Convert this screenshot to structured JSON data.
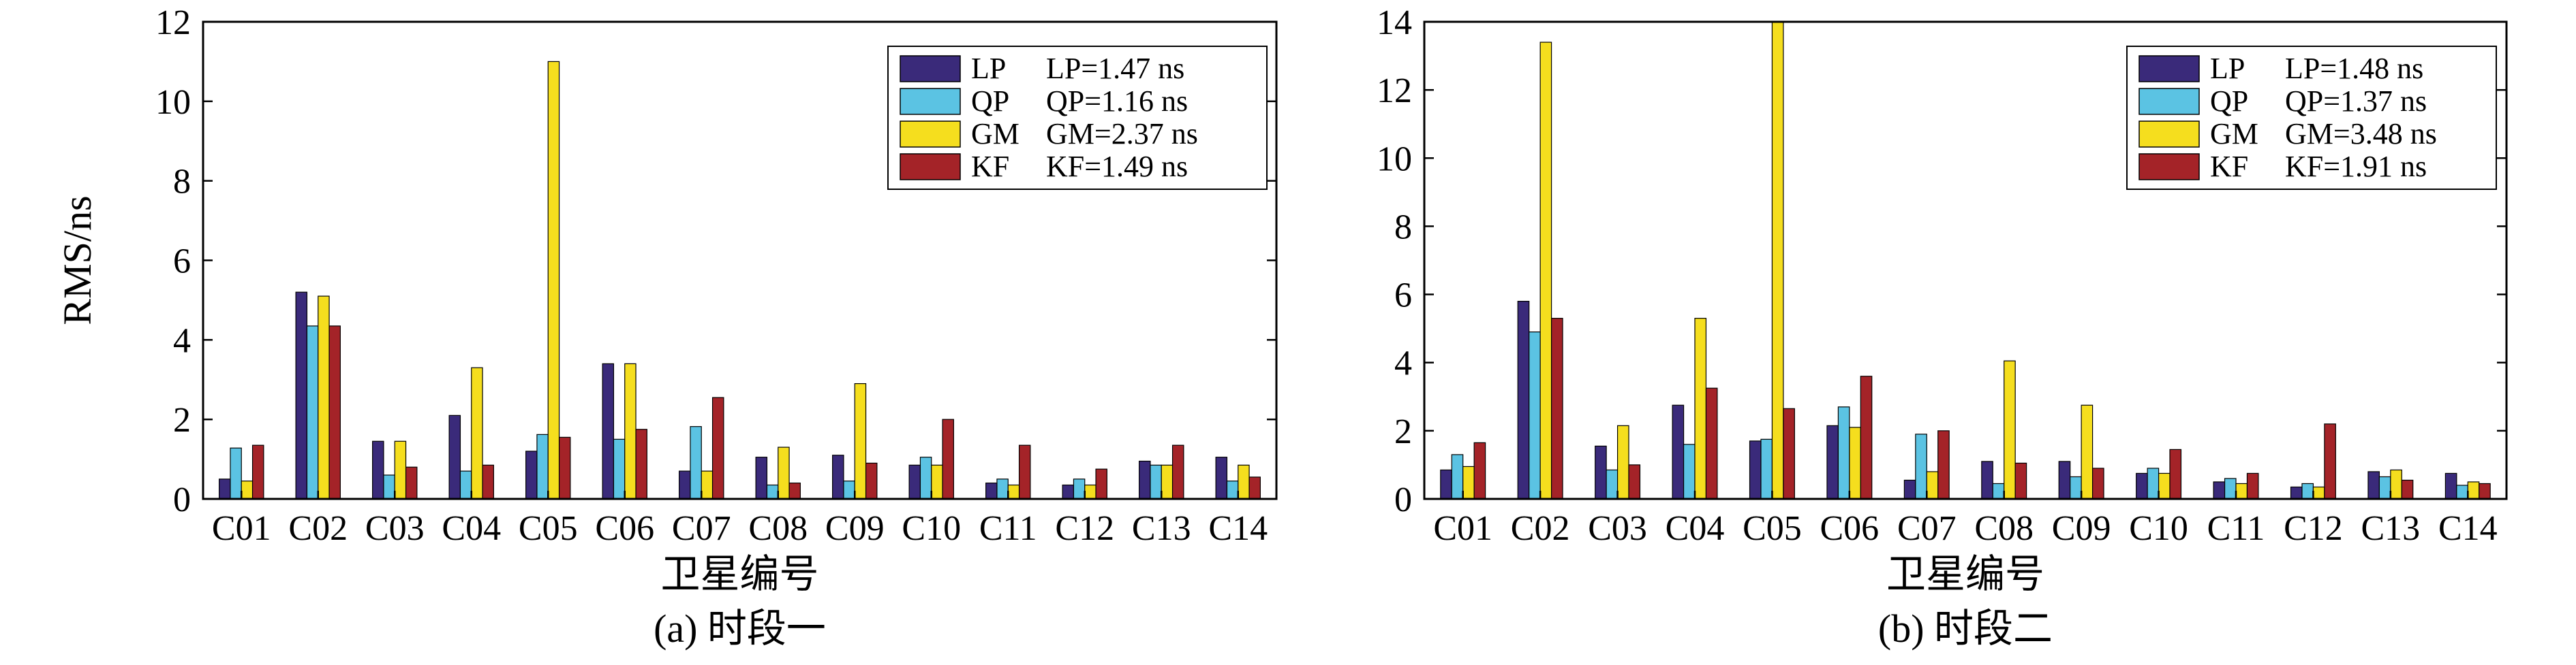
{
  "colors": {
    "LP": "#3a2a7a",
    "QP": "#5bc3e3",
    "GM": "#f5de1e",
    "KF": "#a42328",
    "axis": "#000000",
    "background": "#ffffff"
  },
  "chart_data": [
    {
      "type": "bar",
      "caption": "(a) 时段一",
      "xlabel": "卫星编号",
      "ylabel": "RMS/ns",
      "ylim": [
        0,
        12
      ],
      "yticks": [
        0,
        2,
        4,
        6,
        8,
        10,
        12
      ],
      "categories": [
        "C01",
        "C02",
        "C03",
        "C04",
        "C05",
        "C06",
        "C07",
        "C08",
        "C09",
        "C10",
        "C11",
        "C12",
        "C13",
        "C14"
      ],
      "series": [
        {
          "name": "LP",
          "values": [
            0.5,
            5.2,
            1.45,
            2.1,
            1.2,
            3.4,
            0.7,
            1.05,
            1.1,
            0.85,
            0.4,
            0.35,
            0.95,
            1.05
          ]
        },
        {
          "name": "QP",
          "values": [
            1.28,
            4.35,
            0.6,
            0.7,
            1.62,
            1.5,
            1.82,
            0.35,
            0.45,
            1.05,
            0.5,
            0.5,
            0.85,
            0.45
          ]
        },
        {
          "name": "GM",
          "values": [
            0.45,
            5.1,
            1.45,
            3.3,
            11.0,
            3.4,
            0.7,
            1.3,
            2.9,
            0.85,
            0.35,
            0.35,
            0.85,
            0.85
          ]
        },
        {
          "name": "KF",
          "values": [
            1.35,
            4.35,
            0.8,
            0.85,
            1.55,
            1.75,
            2.55,
            0.4,
            0.9,
            2.0,
            1.35,
            0.75,
            1.35,
            0.55
          ]
        }
      ],
      "legend": {
        "placement": "top-right",
        "entries": [
          {
            "label": "LP",
            "stat": "LP=1.47 ns"
          },
          {
            "label": "QP",
            "stat": "QP=1.16 ns"
          },
          {
            "label": "GM",
            "stat": "GM=2.37 ns"
          },
          {
            "label": "KF",
            "stat": "KF=1.49 ns"
          }
        ]
      }
    },
    {
      "type": "bar",
      "caption": "(b) 时段二",
      "xlabel": "卫星编号",
      "ylabel": "",
      "ylim": [
        0,
        14
      ],
      "yticks": [
        0,
        2,
        4,
        6,
        8,
        10,
        12,
        14
      ],
      "categories": [
        "C01",
        "C02",
        "C03",
        "C04",
        "C05",
        "C06",
        "C07",
        "C08",
        "C09",
        "C10",
        "C11",
        "C12",
        "C13",
        "C14"
      ],
      "series": [
        {
          "name": "LP",
          "values": [
            0.85,
            5.8,
            1.55,
            2.75,
            1.7,
            2.15,
            0.55,
            1.1,
            1.1,
            0.75,
            0.5,
            0.35,
            0.8,
            0.75
          ]
        },
        {
          "name": "QP",
          "values": [
            1.3,
            4.9,
            0.85,
            1.6,
            1.75,
            2.7,
            1.9,
            0.45,
            0.65,
            0.9,
            0.6,
            0.45,
            0.65,
            0.4
          ]
        },
        {
          "name": "GM",
          "values": [
            0.95,
            13.4,
            2.15,
            5.3,
            14.0,
            2.1,
            0.8,
            4.05,
            2.75,
            0.75,
            0.45,
            0.35,
            0.85,
            0.5
          ]
        },
        {
          "name": "KF",
          "values": [
            1.65,
            5.3,
            1.0,
            3.25,
            2.65,
            3.6,
            2.0,
            1.05,
            0.9,
            1.45,
            0.75,
            2.2,
            0.55,
            0.45
          ]
        }
      ],
      "legend": {
        "placement": "top-right",
        "entries": [
          {
            "label": "LP",
            "stat": "LP=1.48 ns"
          },
          {
            "label": "QP",
            "stat": "QP=1.37 ns"
          },
          {
            "label": "GM",
            "stat": "GM=3.48 ns"
          },
          {
            "label": "KF",
            "stat": "KF=1.91 ns"
          }
        ]
      }
    }
  ]
}
